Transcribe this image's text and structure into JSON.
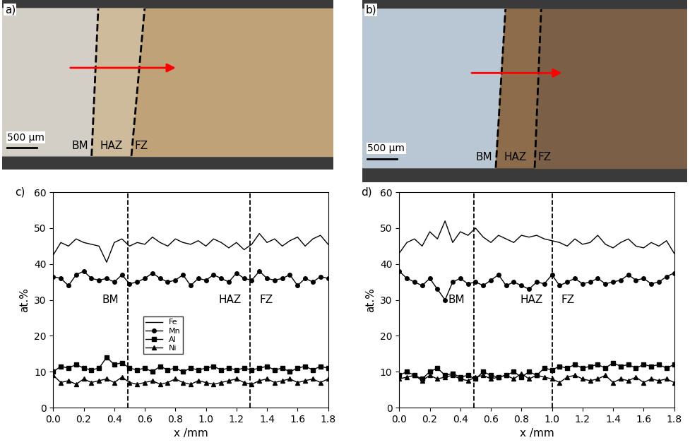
{
  "images": [
    {
      "label": "a)",
      "zones": [
        "BM",
        "HAZ",
        "FZ"
      ],
      "scale_bar": "500 µm"
    },
    {
      "label": "b)",
      "zones": [
        "BM",
        "HAZ",
        "FZ"
      ],
      "scale_bar": "500 µm"
    }
  ],
  "chart_data": [
    {
      "type": "line",
      "label": "c)",
      "x_label": "x /mm",
      "y_label": "at.%",
      "xlim": [
        0.0,
        1.8
      ],
      "ylim": [
        0,
        60
      ],
      "xticks": [
        0.0,
        0.2,
        0.4,
        0.6,
        0.8,
        1.0,
        1.2,
        1.4,
        1.6,
        1.8
      ],
      "yticks": [
        0,
        10,
        20,
        30,
        40,
        50,
        60
      ],
      "legend": "lower center",
      "boundaries": [
        0.49,
        1.29
      ],
      "zone_labels": [
        "BM",
        "HAZ",
        "FZ"
      ],
      "x": [
        0.0,
        0.05,
        0.1,
        0.15,
        0.2,
        0.25,
        0.3,
        0.35,
        0.4,
        0.45,
        0.5,
        0.55,
        0.6,
        0.65,
        0.7,
        0.75,
        0.8,
        0.85,
        0.9,
        0.95,
        1.0,
        1.05,
        1.1,
        1.15,
        1.2,
        1.25,
        1.3,
        1.35,
        1.4,
        1.45,
        1.5,
        1.55,
        1.6,
        1.65,
        1.7,
        1.75,
        1.8
      ],
      "series": [
        {
          "name": "Fe",
          "color": "#000000",
          "marker": "none",
          "line_style": "solid",
          "values": [
            42.5,
            46,
            45,
            47,
            46,
            45.5,
            45,
            40.5,
            46,
            47,
            45,
            46,
            45.5,
            47.5,
            46,
            45,
            47,
            46,
            45.5,
            46.5,
            45,
            47,
            46,
            44.5,
            46,
            44,
            45.5,
            48.5,
            46,
            47,
            45,
            46.5,
            47.5,
            45,
            47,
            48,
            45.5
          ]
        },
        {
          "name": "Mn",
          "color": "#000000",
          "marker": "circle",
          "line_style": "solid",
          "values": [
            36.5,
            36,
            34,
            37,
            38,
            36,
            35.5,
            36,
            35,
            37,
            34.5,
            35,
            36,
            37.5,
            36,
            35,
            35.5,
            37,
            34,
            36,
            35.5,
            37,
            36,
            35,
            37.5,
            36,
            35.5,
            38,
            36,
            35.5,
            36,
            37,
            34,
            36,
            35,
            36.5,
            36
          ]
        },
        {
          "name": "Al",
          "color": "#000000",
          "marker": "square",
          "line_style": "solid",
          "values": [
            10,
            11.5,
            11,
            12,
            11,
            10.5,
            11,
            14,
            12,
            12.5,
            11,
            10.5,
            11,
            10,
            11.5,
            10.5,
            11,
            10,
            11,
            10.5,
            11,
            11.5,
            10.5,
            11,
            10.5,
            11,
            10.5,
            11,
            11.5,
            10.5,
            11,
            10,
            11,
            11.5,
            10.5,
            11.5,
            11
          ]
        },
        {
          "name": "Ni",
          "color": "#000000",
          "marker": "triangle",
          "line_style": "solid",
          "values": [
            9,
            7,
            7.5,
            6.5,
            8,
            7,
            7.5,
            8,
            7,
            8.5,
            7,
            6.5,
            7,
            7.5,
            6.5,
            7,
            8,
            7,
            6.5,
            7.5,
            7,
            6.5,
            7,
            7.5,
            8,
            7,
            6.5,
            7.5,
            8,
            7,
            7.5,
            8,
            7,
            7.5,
            8,
            7,
            8
          ]
        }
      ]
    },
    {
      "type": "line",
      "label": "d)",
      "x_label": "x /mm",
      "y_label": "at.%",
      "xlim": [
        0.0,
        1.8
      ],
      "ylim": [
        0,
        60
      ],
      "xticks": [
        0.0,
        0.2,
        0.4,
        0.6,
        0.8,
        1.0,
        1.2,
        1.4,
        1.6,
        1.8
      ],
      "yticks": [
        0,
        10,
        20,
        30,
        40,
        50,
        60
      ],
      "boundaries": [
        0.49,
        1.0
      ],
      "zone_labels": [
        "BM",
        "HAZ",
        "FZ"
      ],
      "x": [
        0.0,
        0.05,
        0.1,
        0.15,
        0.2,
        0.25,
        0.3,
        0.35,
        0.4,
        0.45,
        0.5,
        0.55,
        0.6,
        0.65,
        0.7,
        0.75,
        0.8,
        0.85,
        0.9,
        0.95,
        1.0,
        1.05,
        1.1,
        1.15,
        1.2,
        1.25,
        1.3,
        1.35,
        1.4,
        1.45,
        1.5,
        1.55,
        1.6,
        1.65,
        1.7,
        1.75,
        1.8
      ],
      "series": [
        {
          "name": "Fe",
          "color": "#000000",
          "marker": "none",
          "line_style": "solid",
          "values": [
            43,
            46,
            47,
            45,
            49,
            47,
            52,
            46,
            49,
            48,
            50,
            47.5,
            46,
            48,
            47,
            46,
            48,
            47.5,
            48,
            47,
            46.5,
            46,
            45,
            47,
            45.5,
            46,
            48,
            45.5,
            44.5,
            46,
            47,
            45,
            44.5,
            46,
            45,
            46.5,
            43
          ]
        },
        {
          "name": "Mn",
          "color": "#000000",
          "marker": "circle",
          "line_style": "solid",
          "values": [
            38,
            36,
            35,
            34,
            36,
            33,
            30,
            35,
            36,
            34.5,
            35,
            34,
            35.5,
            37,
            34,
            35,
            34,
            33,
            35,
            34.5,
            37,
            34,
            35,
            36,
            34.5,
            35,
            36,
            34.5,
            35,
            35.5,
            37,
            35.5,
            36,
            34.5,
            35,
            36.5,
            37.5
          ]
        },
        {
          "name": "Al",
          "color": "#000000",
          "marker": "square",
          "line_style": "solid",
          "values": [
            9,
            10,
            9,
            8,
            10,
            11,
            9,
            9.5,
            8.5,
            9,
            8,
            10,
            9,
            8.5,
            9,
            10,
            8.5,
            10,
            9,
            11,
            10.5,
            11.5,
            11,
            12,
            11,
            11.5,
            12,
            11,
            12.5,
            11.5,
            12,
            11,
            12,
            11.5,
            12,
            11,
            12
          ]
        },
        {
          "name": "Ni",
          "color": "#000000",
          "marker": "triangle",
          "line_style": "solid",
          "values": [
            8,
            8.5,
            9,
            7.5,
            9,
            8,
            8.5,
            9,
            8,
            7.5,
            8.5,
            9,
            8,
            8.5,
            9,
            8,
            9.5,
            8,
            9,
            8.5,
            8,
            7,
            8.5,
            9,
            8,
            7.5,
            8,
            9,
            7,
            8,
            7.5,
            8.5,
            7,
            8,
            7.5,
            8,
            7
          ]
        }
      ]
    }
  ]
}
